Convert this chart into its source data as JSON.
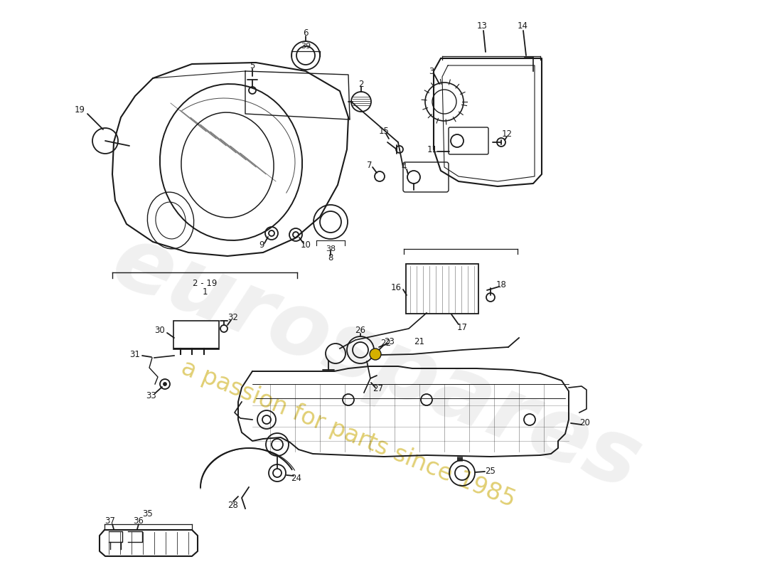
{
  "bg_color": "#ffffff",
  "lc": "#1a1a1a",
  "lw": 1.3,
  "watermark1": "eurospares",
  "watermark2": "a passion for parts since 1985",
  "wm1_color": "#bebebe",
  "wm2_color": "#c8a800",
  "label_fs": 8.5
}
